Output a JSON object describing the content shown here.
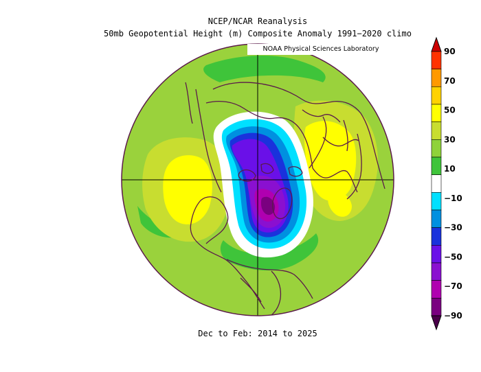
{
  "header": {
    "title": "NCEP/NCAR Reanalysis",
    "subtitle": "50mb Geopotential Height (m) Composite Anomaly 1991−2020 climo"
  },
  "credit": "NOAA Physical Sciences Laboratory",
  "footer": {
    "period": "Dec to Feb: 2014 to 2025"
  },
  "map": {
    "projection": "north-polar-stereographic",
    "field": "50mb geopotential height anomaly",
    "units": "m",
    "features": [
      {
        "name": "negative-anomaly-core",
        "sign": "negative",
        "min_value": -90,
        "region": "Hudson Bay / Baffin / Greenland"
      },
      {
        "name": "positive-anomaly-europe",
        "sign": "positive",
        "max_value": 55,
        "region": "Europe / Scandinavia"
      },
      {
        "name": "positive-anomaly-pacific",
        "sign": "positive",
        "max_value": 50,
        "region": "North Pacific / Aleutians"
      }
    ],
    "colors": {
      "background_field": "#9ad23c",
      "coast": "#5a1a4a",
      "grid": "#000000"
    }
  },
  "colorbar": {
    "labels": [
      "90",
      "70",
      "50",
      "30",
      "10",
      "−10",
      "−30",
      "−50",
      "−70",
      "−90"
    ],
    "colors": [
      "#cc0000",
      "#ff3300",
      "#ff9900",
      "#ffd200",
      "#ffff00",
      "#c8dd30",
      "#8fd23a",
      "#3fc43a",
      "#ffffff",
      "#00e0ff",
      "#0090e0",
      "#1a32dc",
      "#6a10e8",
      "#8a10d0",
      "#b000b0",
      "#7a0080",
      "#4a004a"
    ]
  }
}
